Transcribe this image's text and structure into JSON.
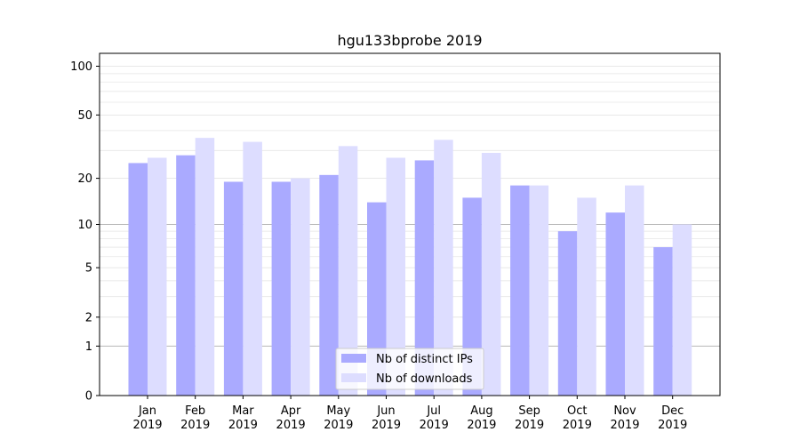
{
  "chart_data": {
    "type": "bar",
    "title": "hgu133bprobe 2019",
    "xlabel": "",
    "ylabel": "",
    "y_scale": "log(1+y)",
    "ylim": [
      0,
      120
    ],
    "yticks": [
      0,
      1,
      2,
      5,
      10,
      20,
      50,
      100
    ],
    "categories": [
      "Jan",
      "Feb",
      "Mar",
      "Apr",
      "May",
      "Jun",
      "Jul",
      "Aug",
      "Sep",
      "Oct",
      "Nov",
      "Dec"
    ],
    "category_sublabel": "2019",
    "series": [
      {
        "name": "Nb of distinct IPs",
        "color": "#aaaaff",
        "values": [
          25,
          28,
          19,
          19,
          21,
          14,
          26,
          15,
          18,
          9,
          12,
          7
        ]
      },
      {
        "name": "Nb of downloads",
        "color": "#ddddff",
        "values": [
          27,
          36,
          34,
          20,
          32,
          27,
          35,
          29,
          18,
          15,
          18,
          10
        ]
      }
    ],
    "grid": true,
    "legend_position": "bottom-center"
  }
}
